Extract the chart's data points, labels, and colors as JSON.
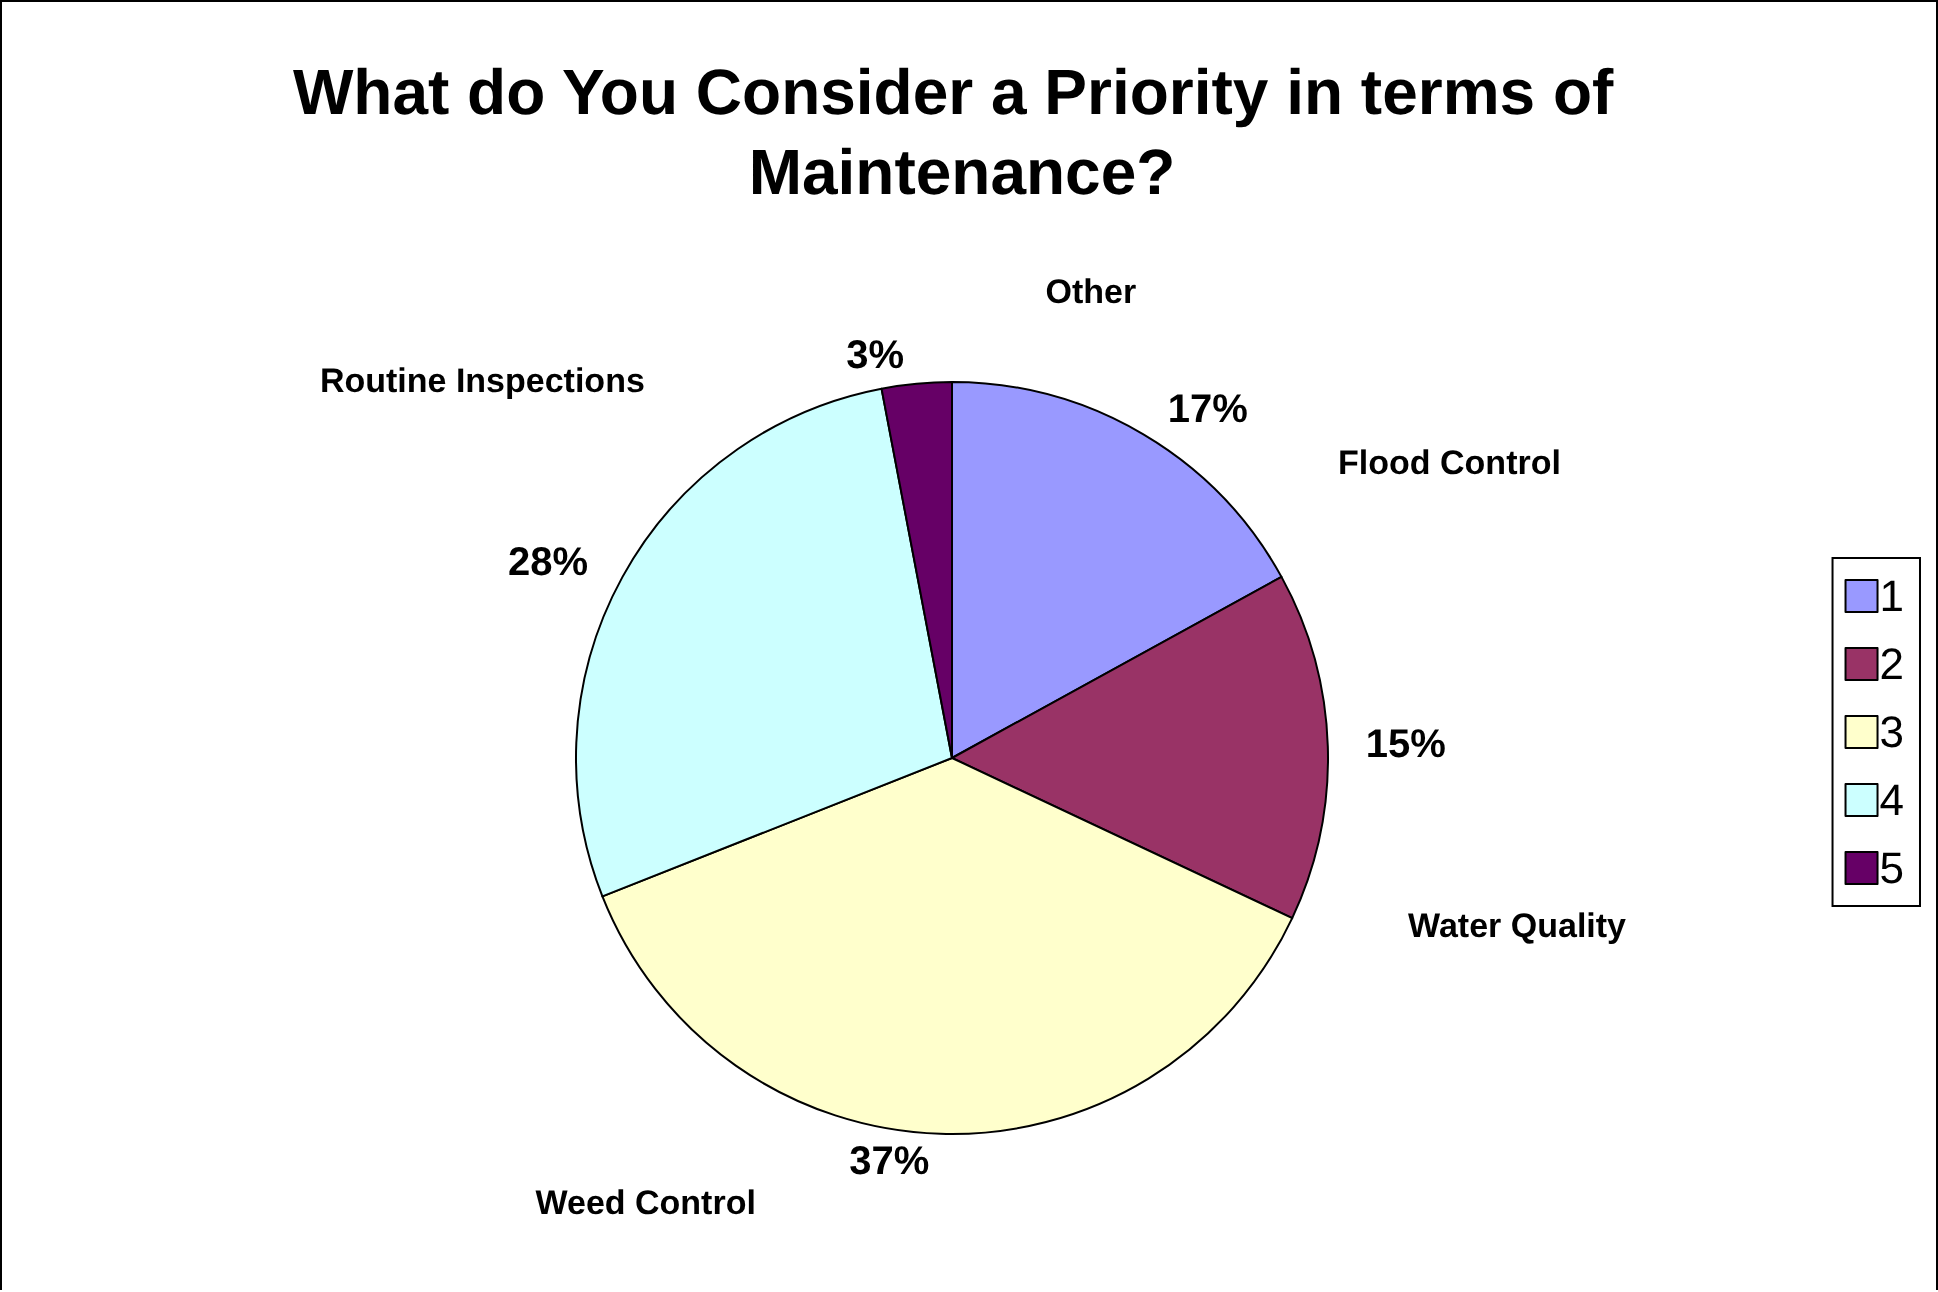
{
  "chart_data": {
    "type": "pie",
    "title": "What do You Consider a Priority in terms of Maintenance?",
    "categories": [
      "1",
      "2",
      "3",
      "4",
      "5"
    ],
    "values": [
      17,
      15,
      37,
      28,
      3
    ],
    "colors": [
      "#9999ff",
      "#993366",
      "#ffffcc",
      "#ccffff",
      "#660066"
    ],
    "annotations": [
      "Flood Control",
      "Water Quality",
      "Weed Control",
      "Routine Inspections",
      "Other"
    ],
    "value_labels": [
      "17%",
      "15%",
      "37%",
      "28%",
      "3%"
    ],
    "legend": "right"
  }
}
